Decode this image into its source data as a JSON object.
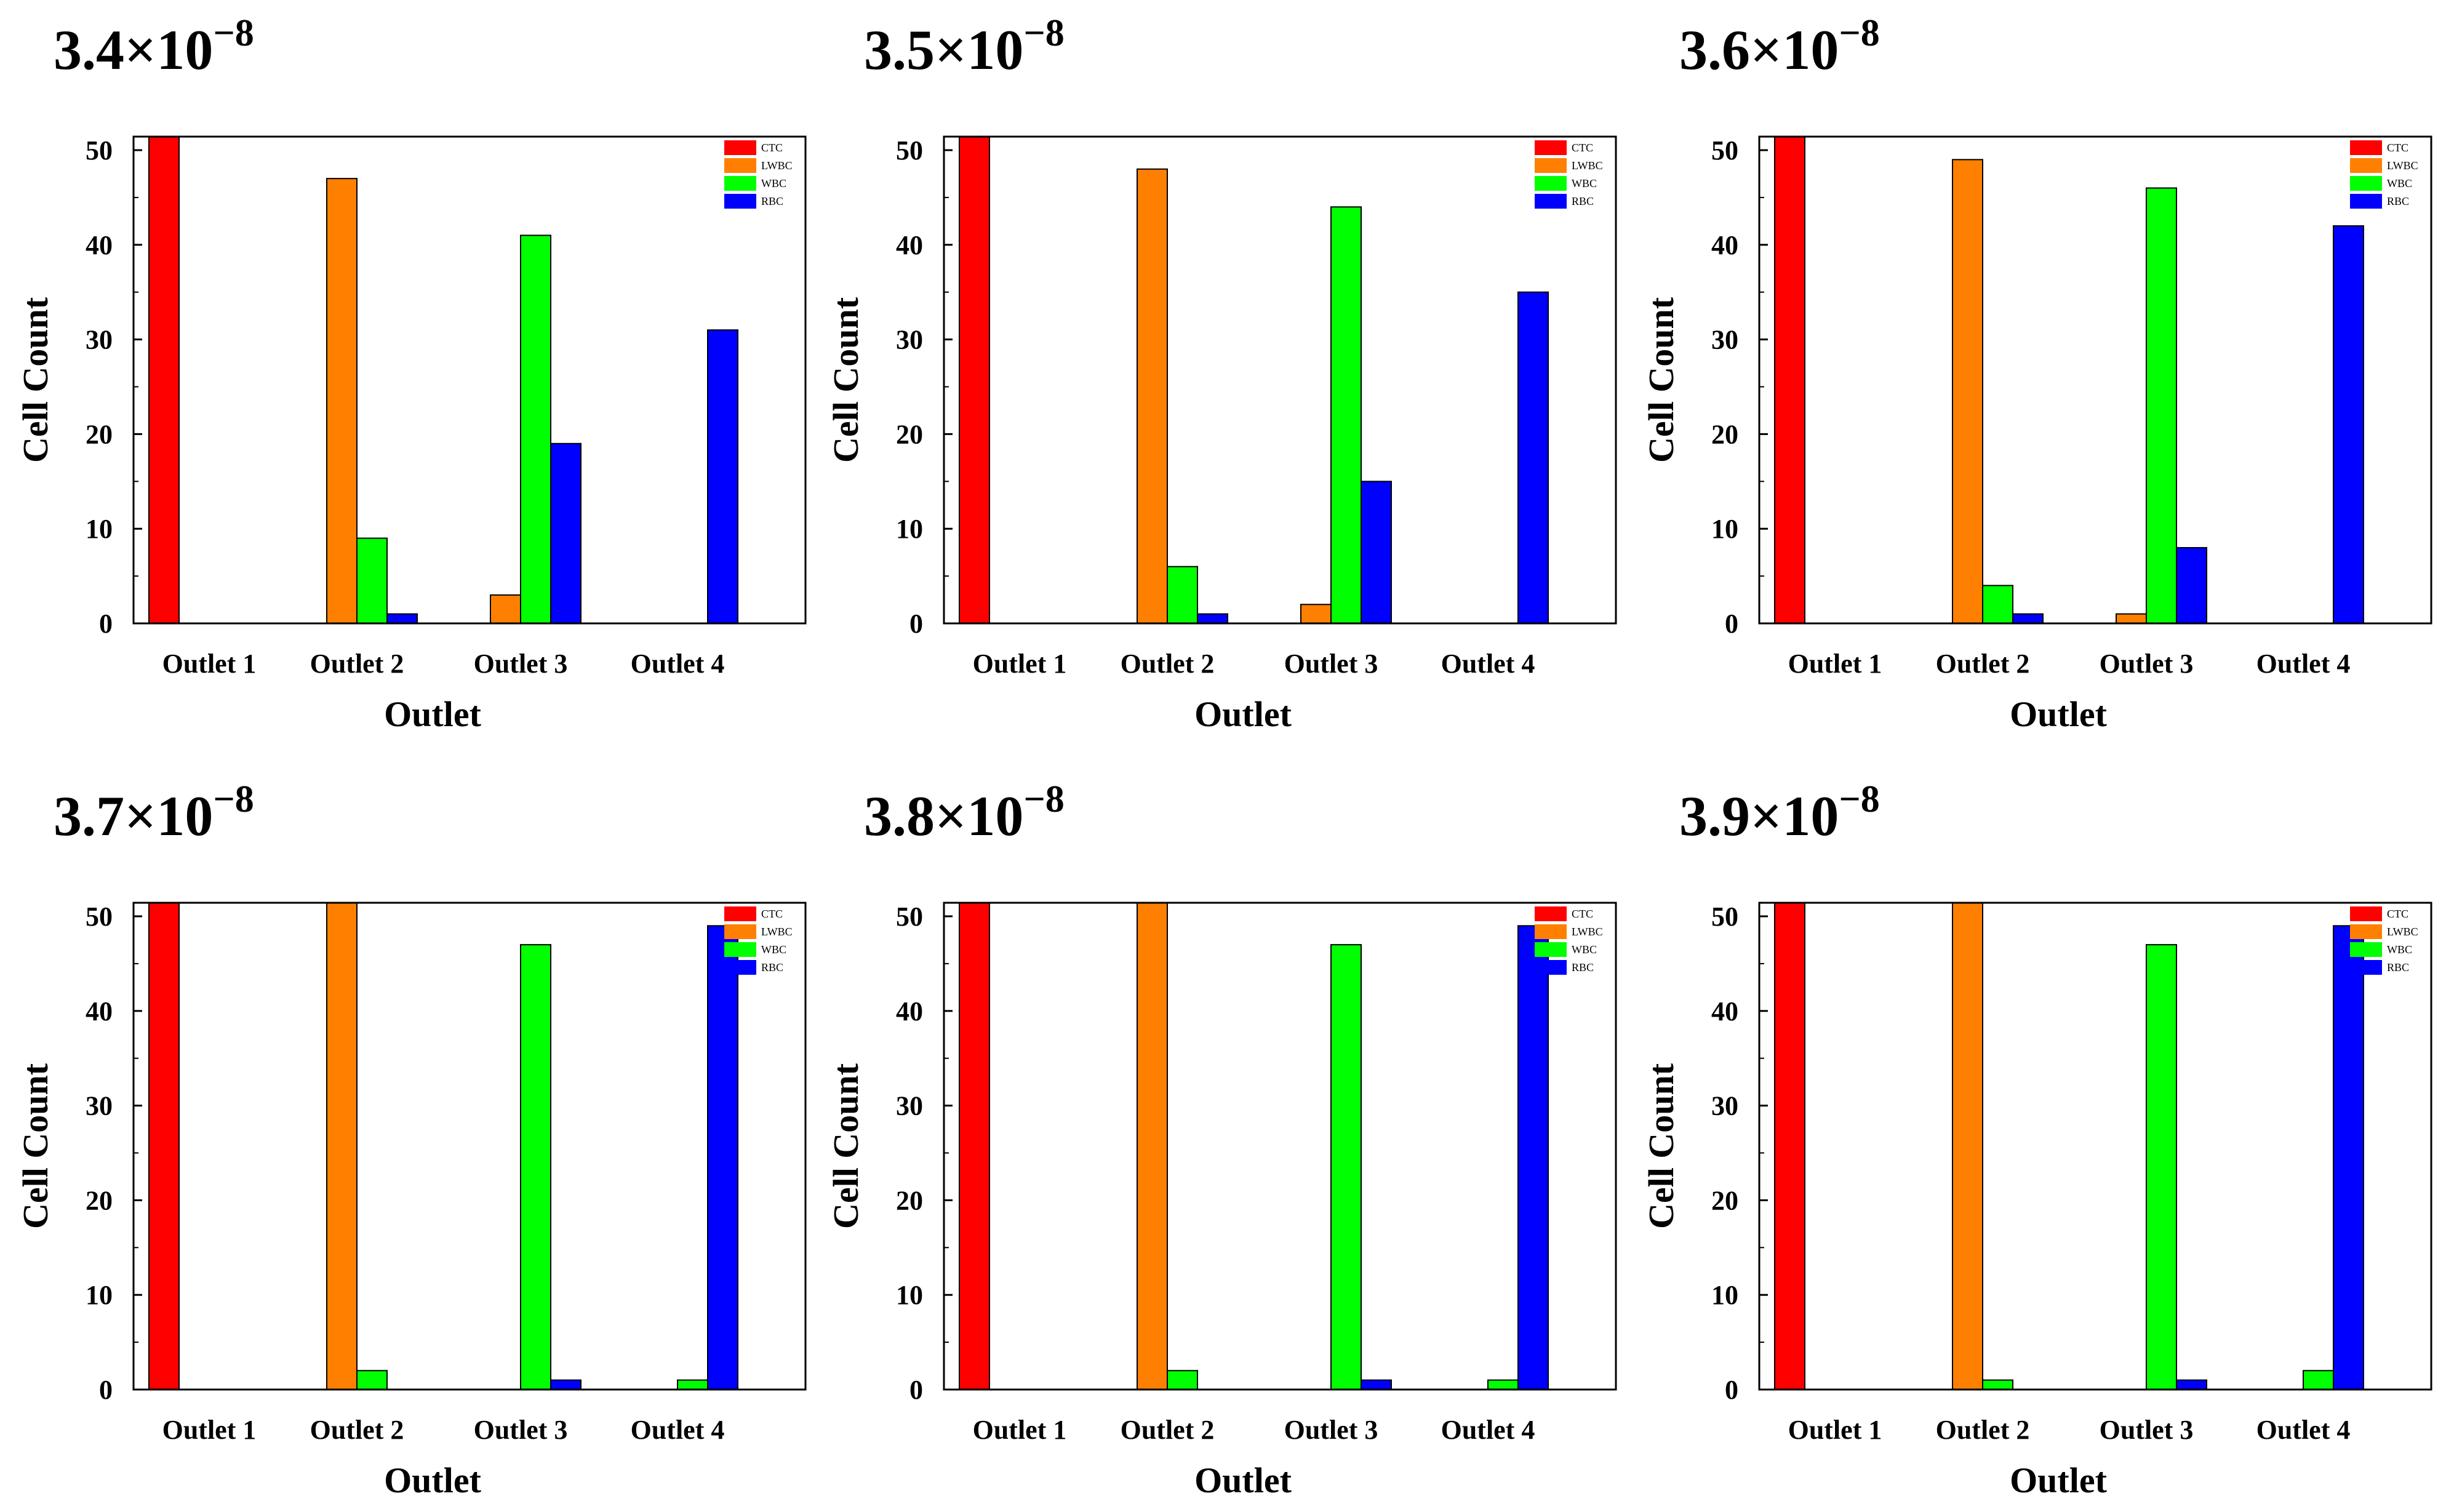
{
  "chart_data": [
    {
      "type": "bar",
      "title": {
        "mantissa": "3.4×10",
        "exponent": "−8"
      },
      "xlabel": "Outlet",
      "ylabel": "Cell Count",
      "categories": [
        "Outlet 1",
        "Outlet 2",
        "Outlet 3",
        "Outlet 4"
      ],
      "ylim": [
        0,
        50
      ],
      "yticks": [
        "0",
        "10",
        "20",
        "30",
        "40",
        "50"
      ],
      "series": [
        {
          "name": "CTC",
          "color": "#ff0000",
          "values": [
            50,
            0,
            0,
            0
          ]
        },
        {
          "name": "LWBC",
          "color": "#ff8000",
          "values": [
            0,
            47,
            3,
            0
          ]
        },
        {
          "name": "WBC",
          "color": "#00ff00",
          "values": [
            0,
            9,
            41,
            0
          ]
        },
        {
          "name": "RBC",
          "color": "#0000ff",
          "values": [
            0,
            1,
            19,
            31
          ]
        }
      ]
    },
    {
      "type": "bar",
      "title": {
        "mantissa": "3.5×10",
        "exponent": "−8"
      },
      "xlabel": "Outlet",
      "ylabel": "Cell Count",
      "categories": [
        "Outlet 1",
        "Outlet 2",
        "Outlet 3",
        "Outlet 4"
      ],
      "ylim": [
        0,
        50
      ],
      "yticks": [
        "0",
        "10",
        "20",
        "30",
        "40",
        "50"
      ],
      "series": [
        {
          "name": "CTC",
          "color": "#ff0000",
          "values": [
            50,
            0,
            0,
            0
          ]
        },
        {
          "name": "LWBC",
          "color": "#ff8000",
          "values": [
            0,
            48,
            2,
            0
          ]
        },
        {
          "name": "WBC",
          "color": "#00ff00",
          "values": [
            0,
            6,
            44,
            0
          ]
        },
        {
          "name": "RBC",
          "color": "#0000ff",
          "values": [
            0,
            1,
            15,
            35
          ]
        }
      ]
    },
    {
      "type": "bar",
      "title": {
        "mantissa": "3.6×10",
        "exponent": "−8"
      },
      "xlabel": "Outlet",
      "ylabel": "Cell Count",
      "categories": [
        "Outlet 1",
        "Outlet 2",
        "Outlet 3",
        "Outlet 4"
      ],
      "ylim": [
        0,
        50
      ],
      "yticks": [
        "0",
        "10",
        "20",
        "30",
        "40",
        "50"
      ],
      "series": [
        {
          "name": "CTC",
          "color": "#ff0000",
          "values": [
            50,
            0,
            0,
            0
          ]
        },
        {
          "name": "LWBC",
          "color": "#ff8000",
          "values": [
            0,
            49,
            1,
            0
          ]
        },
        {
          "name": "WBC",
          "color": "#00ff00",
          "values": [
            0,
            4,
            46,
            0
          ]
        },
        {
          "name": "RBC",
          "color": "#0000ff",
          "values": [
            0,
            1,
            8,
            42
          ]
        }
      ]
    },
    {
      "type": "bar",
      "title": {
        "mantissa": "3.7×10",
        "exponent": "−8"
      },
      "xlabel": "Outlet",
      "ylabel": "Cell Count",
      "categories": [
        "Outlet 1",
        "Outlet 2",
        "Outlet 3",
        "Outlet 4"
      ],
      "ylim": [
        0,
        50
      ],
      "yticks": [
        "0",
        "10",
        "20",
        "30",
        "40",
        "50"
      ],
      "series": [
        {
          "name": "CTC",
          "color": "#ff0000",
          "values": [
            50,
            0,
            0,
            0
          ]
        },
        {
          "name": "LWBC",
          "color": "#ff8000",
          "values": [
            0,
            50,
            0,
            0
          ]
        },
        {
          "name": "WBC",
          "color": "#00ff00",
          "values": [
            0,
            2,
            47,
            1
          ]
        },
        {
          "name": "RBC",
          "color": "#0000ff",
          "values": [
            0,
            0,
            1,
            49
          ]
        }
      ]
    },
    {
      "type": "bar",
      "title": {
        "mantissa": "3.8×10",
        "exponent": "−8"
      },
      "xlabel": "Outlet",
      "ylabel": "Cell Count",
      "categories": [
        "Outlet 1",
        "Outlet 2",
        "Outlet 3",
        "Outlet 4"
      ],
      "ylim": [
        0,
        50
      ],
      "yticks": [
        "0",
        "10",
        "20",
        "30",
        "40",
        "50"
      ],
      "series": [
        {
          "name": "CTC",
          "color": "#ff0000",
          "values": [
            50,
            0,
            0,
            0
          ]
        },
        {
          "name": "LWBC",
          "color": "#ff8000",
          "values": [
            0,
            50,
            0,
            0
          ]
        },
        {
          "name": "WBC",
          "color": "#00ff00",
          "values": [
            0,
            2,
            47,
            1
          ]
        },
        {
          "name": "RBC",
          "color": "#0000ff",
          "values": [
            0,
            0,
            1,
            49
          ]
        }
      ]
    },
    {
      "type": "bar",
      "title": {
        "mantissa": "3.9×10",
        "exponent": "−8"
      },
      "xlabel": "Outlet",
      "ylabel": "Cell Count",
      "categories": [
        "Outlet 1",
        "Outlet 2",
        "Outlet 3",
        "Outlet 4"
      ],
      "ylim": [
        0,
        50
      ],
      "yticks": [
        "0",
        "10",
        "20",
        "30",
        "40",
        "50"
      ],
      "series": [
        {
          "name": "CTC",
          "color": "#ff0000",
          "values": [
            50,
            0,
            0,
            0
          ]
        },
        {
          "name": "LWBC",
          "color": "#ff8000",
          "values": [
            0,
            50,
            0,
            0
          ]
        },
        {
          "name": "WBC",
          "color": "#00ff00",
          "values": [
            0,
            1,
            47,
            2
          ]
        },
        {
          "name": "RBC",
          "color": "#0000ff",
          "values": [
            0,
            0,
            1,
            49
          ]
        }
      ]
    }
  ]
}
